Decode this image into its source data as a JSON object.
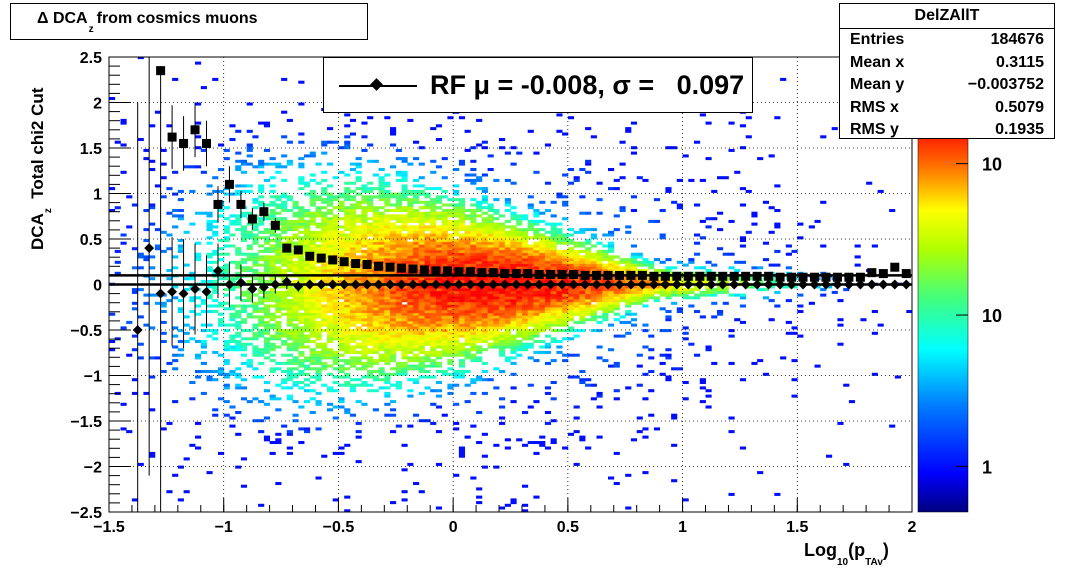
{
  "title": {
    "prefix": "Δ DCA",
    "sub": "z",
    "suffix": "from cosmics muons"
  },
  "stats": {
    "name": "DelZAllT",
    "rows": [
      {
        "label": "Entries",
        "value": "184676"
      },
      {
        "label": "Mean x",
        "value": "0.3115"
      },
      {
        "label": "Mean y",
        "value": "−0.003752"
      },
      {
        "label": "RMS x",
        "value": "0.5079"
      },
      {
        "label": "RMS y",
        "value": "0.1935"
      }
    ]
  },
  "legend": {
    "text": "RF μ = -0.008, σ =   0.097"
  },
  "axes": {
    "ylabel_main": "DCA",
    "ylabel_sub": "z",
    "ylabel_extra": "Total chi2 Cut",
    "xlabel_main": "Log",
    "xlabel_sub1": "10",
    "xlabel_mid": "(p",
    "xlabel_sub2": "TAv",
    "xlabel_end": ")"
  },
  "chart_data": {
    "type": "heatmap",
    "xlim": [
      -1.5,
      2
    ],
    "ylim": [
      -2.5,
      2.5
    ],
    "x_ticks": [
      "−1.5",
      "−1",
      "−0.5",
      "0",
      "0.5",
      "1",
      "1.5",
      "2"
    ],
    "x_tick_values": [
      -1.5,
      -1,
      -0.5,
      0,
      0.5,
      1,
      1.5,
      2
    ],
    "y_ticks": [
      "2.5",
      "2",
      "1.5",
      "1",
      "0.5",
      "0",
      "−0.5",
      "−1",
      "−1.5",
      "−2",
      "−2.5"
    ],
    "y_tick_values": [
      2.5,
      2,
      1.5,
      1,
      0.5,
      0,
      -0.5,
      -1,
      -1.5,
      -2,
      -2.5
    ],
    "grid": true,
    "colorbar": {
      "labels": [
        "10",
        "10",
        "1"
      ],
      "label_counts": [
        100,
        10,
        1
      ],
      "min": 0.5,
      "max": 180
    },
    "hlines": [
      0.1,
      0.0
    ],
    "mean_points": {
      "x": [
        -1.375,
        -1.325,
        -1.275,
        -1.225,
        -1.175,
        -1.125,
        -1.075,
        -1.025,
        -0.975,
        -0.925,
        -0.875,
        -0.825,
        -0.775,
        -0.725,
        -0.675,
        -0.625,
        -0.575,
        -0.525,
        -0.475,
        -0.425,
        -0.375,
        -0.325,
        -0.275,
        -0.225,
        -0.175,
        -0.125,
        -0.075,
        -0.025,
        0.025,
        0.075,
        0.125,
        0.175,
        0.225,
        0.275,
        0.325,
        0.375,
        0.425,
        0.475,
        0.525,
        0.575,
        0.625,
        0.675,
        0.725,
        0.775,
        0.825,
        0.875,
        0.925,
        0.975,
        1.025,
        1.075,
        1.125,
        1.175,
        1.225,
        1.275,
        1.325,
        1.375,
        1.425,
        1.475,
        1.525,
        1.575,
        1.625,
        1.675,
        1.725,
        1.775,
        1.825,
        1.875,
        1.925,
        1.975
      ],
      "y": [
        -0.5,
        0.4,
        -0.1,
        -0.08,
        -0.1,
        -0.05,
        -0.08,
        0.15,
        0.0,
        0.02,
        -0.05,
        -0.03,
        0.0,
        0.03,
        -0.02,
        0.0,
        0.0,
        0.0,
        0.0,
        0.0,
        0.0,
        0.0,
        0.0,
        0.0,
        0.0,
        0.0,
        0.0,
        0.0,
        0.0,
        0.0,
        0.0,
        0.0,
        0.0,
        0.0,
        0.0,
        0.0,
        0.0,
        0.0,
        0.0,
        0.0,
        0.0,
        0.0,
        0.0,
        0.0,
        0.0,
        0.0,
        0.0,
        0.0,
        0.0,
        0.0,
        0.0,
        0.0,
        0.0,
        0.0,
        0.0,
        0.0,
        0.0,
        0.0,
        0.0,
        0.0,
        0.0,
        0.0,
        0.0,
        0.0,
        0.0,
        0.0,
        0.0,
        0.0
      ],
      "yerr": [
        2.5,
        2.5,
        2.5,
        0.6,
        0.6,
        0.5,
        0.4,
        0.3,
        0.25,
        0.2,
        0.15,
        0.12,
        0.1,
        0.08,
        0.06,
        0.05,
        0.04,
        0.03,
        0.03,
        0.03,
        0.02,
        0.02,
        0.02,
        0.02,
        0.02,
        0.02,
        0.02,
        0.02,
        0.02,
        0.02,
        0.02,
        0.02,
        0.02,
        0.02,
        0.02,
        0.02,
        0.02,
        0.02,
        0.02,
        0.02,
        0.02,
        0.02,
        0.02,
        0.02,
        0.02,
        0.02,
        0.02,
        0.02,
        0.02,
        0.02,
        0.02,
        0.02,
        0.02,
        0.02,
        0.02,
        0.02,
        0.02,
        0.02,
        0.02,
        0.02,
        0.02,
        0.02,
        0.02,
        0.02,
        0.02,
        0.02,
        0.03,
        0.04
      ]
    },
    "rms_points": {
      "x": [
        -1.275,
        -1.225,
        -1.175,
        -1.125,
        -1.075,
        -1.025,
        -0.975,
        -0.925,
        -0.875,
        -0.825,
        -0.775,
        -0.725,
        -0.675,
        -0.625,
        -0.575,
        -0.525,
        -0.475,
        -0.425,
        -0.375,
        -0.325,
        -0.275,
        -0.225,
        -0.175,
        -0.125,
        -0.075,
        -0.025,
        0.025,
        0.075,
        0.125,
        0.175,
        0.225,
        0.275,
        0.325,
        0.375,
        0.425,
        0.475,
        0.525,
        0.575,
        0.625,
        0.675,
        0.725,
        0.775,
        0.825,
        0.875,
        0.925,
        0.975,
        1.025,
        1.075,
        1.125,
        1.175,
        1.225,
        1.275,
        1.325,
        1.375,
        1.425,
        1.475,
        1.525,
        1.575,
        1.625,
        1.675,
        1.725,
        1.775,
        1.825,
        1.875,
        1.925,
        1.975
      ],
      "y": [
        2.35,
        1.62,
        1.55,
        1.7,
        1.55,
        0.88,
        1.1,
        0.88,
        0.72,
        0.8,
        0.65,
        0.4,
        0.38,
        0.31,
        0.29,
        0.27,
        0.25,
        0.23,
        0.22,
        0.2,
        0.19,
        0.18,
        0.17,
        0.16,
        0.15,
        0.15,
        0.14,
        0.14,
        0.13,
        0.13,
        0.12,
        0.12,
        0.12,
        0.11,
        0.11,
        0.11,
        0.11,
        0.1,
        0.1,
        0.1,
        0.1,
        0.1,
        0.1,
        0.09,
        0.09,
        0.09,
        0.09,
        0.09,
        0.09,
        0.09,
        0.09,
        0.09,
        0.09,
        0.09,
        0.08,
        0.08,
        0.08,
        0.08,
        0.08,
        0.08,
        0.08,
        0.08,
        0.13,
        0.12,
        0.19,
        0.12
      ],
      "yerr": [
        0.0,
        0.35,
        0.3,
        0.3,
        0.25,
        0.2,
        0.2,
        0.15,
        0.12,
        0.1,
        0.08,
        0.04,
        0.03,
        0.02,
        0.02,
        0.02,
        0.01,
        0.01,
        0.01,
        0.01,
        0.01,
        0.01,
        0.01,
        0.01,
        0.01,
        0.01,
        0.01,
        0.01,
        0.01,
        0.01,
        0.01,
        0.01,
        0.01,
        0.01,
        0.01,
        0.01,
        0.01,
        0.01,
        0.01,
        0.01,
        0.01,
        0.01,
        0.01,
        0.01,
        0.01,
        0.01,
        0.01,
        0.01,
        0.01,
        0.01,
        0.01,
        0.01,
        0.01,
        0.01,
        0.01,
        0.01,
        0.01,
        0.01,
        0.01,
        0.01,
        0.01,
        0.01,
        0.02,
        0.02,
        0.04,
        0.03
      ]
    }
  }
}
